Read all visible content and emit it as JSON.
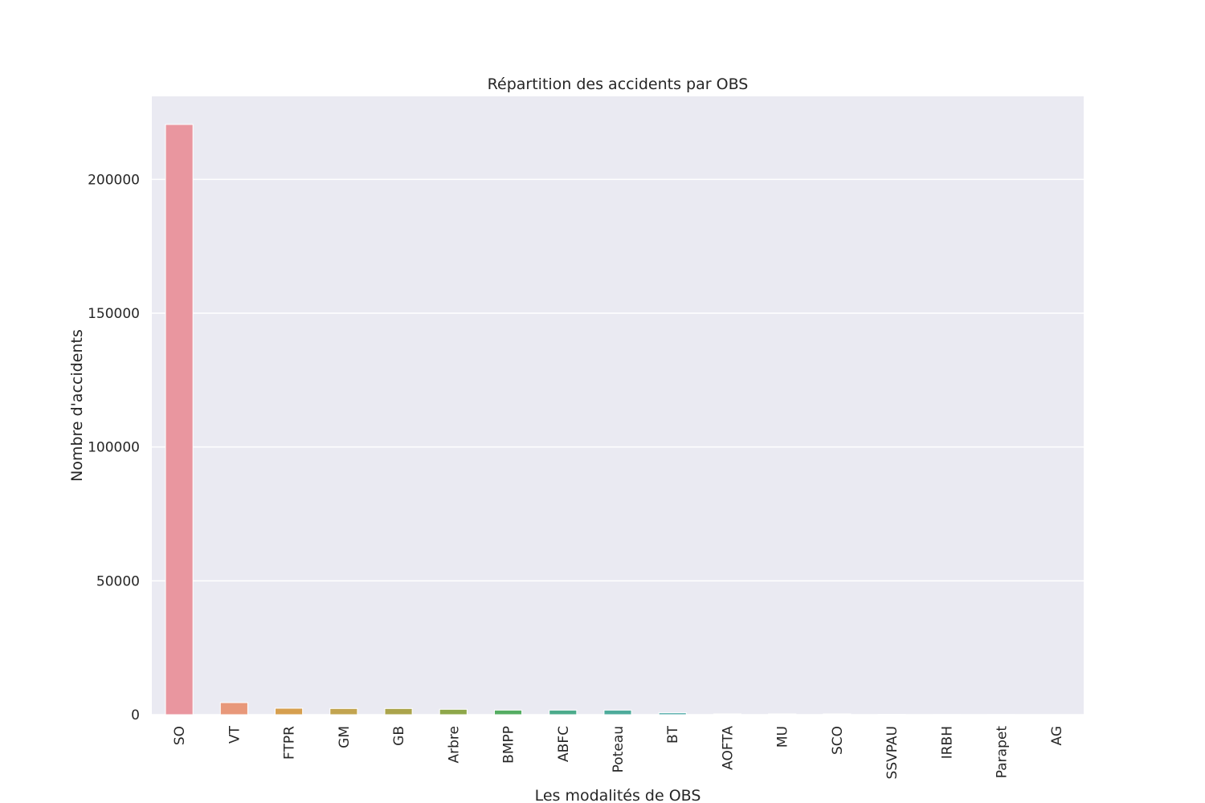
{
  "chart_data": {
    "type": "bar",
    "title": "Répartition des accidents par OBS",
    "xlabel": "Les modalités de OBS",
    "ylabel": "Nombre d'accidents",
    "categories": [
      "SO",
      "VT",
      "FTPR",
      "GM",
      "GB",
      "Arbre",
      "BMPP",
      "ABFC",
      "Poteau",
      "BT",
      "AOFTA",
      "MU",
      "SCO",
      "SSVPAU",
      "IRBH",
      "Parapet",
      "AG"
    ],
    "values": [
      220500,
      4500,
      2400,
      2300,
      2300,
      2000,
      1700,
      1700,
      1700,
      700,
      300,
      300,
      300,
      120,
      60,
      50,
      20
    ],
    "colors": [
      "#e9969f",
      "#e8987a",
      "#d69f4f",
      "#c2a450",
      "#aba44c",
      "#8ea74a",
      "#54ad62",
      "#4bab8b",
      "#4dab9b",
      "#4eaaa8",
      "#50a9b8",
      "#5aa8cc",
      "#8ca6df",
      "#b3a0e4",
      "#d193e3",
      "#e58bd2",
      "#e992b6"
    ],
    "yticks": [
      0,
      50000,
      100000,
      150000,
      200000
    ],
    "ylim": [
      0,
      231000
    ],
    "grid": true,
    "legend": "none"
  }
}
